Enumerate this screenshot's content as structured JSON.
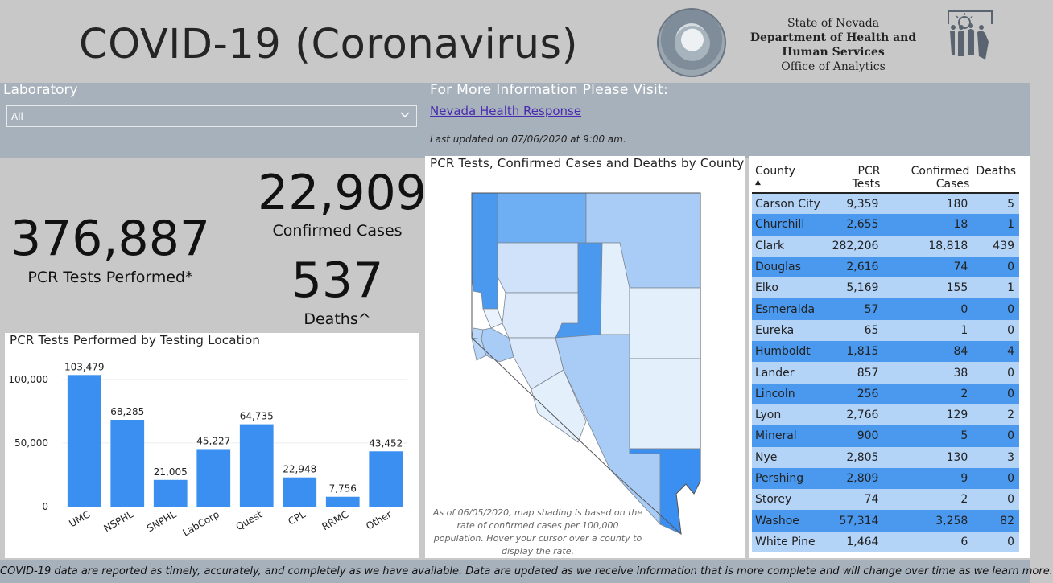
{
  "header": {
    "title": "COVID-19 (Coronavirus)",
    "dept_line1": "State of Nevada",
    "dept_line2": "Department of Health and",
    "dept_line3": "Human Services",
    "dept_line4": "Office of Analytics",
    "seal_icon": "nevada-state-seal",
    "logo_icon": "dhhs-logo"
  },
  "filter": {
    "label": "Laboratory",
    "selected": "All"
  },
  "info": {
    "heading": "For More Information Please Visit:",
    "link_text": "Nevada Health Response",
    "updated": "Last updated on 07/06/2020 at 9:00 am."
  },
  "kpis": {
    "pcr_value": "376,887",
    "pcr_label": "PCR Tests Performed*",
    "cases_value": "22,909",
    "cases_label": "Confirmed Cases",
    "deaths_value": "537",
    "deaths_label": "Deaths^"
  },
  "bar_chart": {
    "title": "PCR Tests Performed by Testing Location"
  },
  "chart_data": {
    "type": "bar",
    "title": "PCR Tests Performed by Testing Location",
    "categories": [
      "UMC",
      "NSPHL",
      "SNPHL",
      "LabCorp",
      "Quest",
      "CPL",
      "RRMC",
      "Other"
    ],
    "values": [
      103479,
      68285,
      21005,
      45227,
      64735,
      22948,
      7756,
      43452
    ],
    "value_labels": [
      "103,479",
      "68,285",
      "21,005",
      "45,227",
      "64,735",
      "22,948",
      "7,756",
      "43,452"
    ],
    "y_ticks": [
      0,
      50000,
      100000
    ],
    "y_tick_labels": [
      "0",
      "50,000",
      "100,000"
    ],
    "ylim": [
      0,
      110000
    ],
    "grid": true,
    "bar_color": "#3b8ff0"
  },
  "map": {
    "title": "PCR Tests, Confirmed Cases and Deaths by County",
    "note": "As of 06/05/2020, map shading is based on the rate of confirmed cases per 100,000 population. Hover your cursor over a county to display the rate."
  },
  "table": {
    "headers": [
      "County",
      "PCR Tests",
      "Confirmed Cases",
      "Deaths"
    ],
    "rows": [
      [
        "Carson City",
        "9,359",
        "180",
        "5"
      ],
      [
        "Churchill",
        "2,655",
        "18",
        "1"
      ],
      [
        "Clark",
        "282,206",
        "18,818",
        "439"
      ],
      [
        "Douglas",
        "2,616",
        "74",
        "0"
      ],
      [
        "Elko",
        "5,169",
        "155",
        "1"
      ],
      [
        "Esmeralda",
        "57",
        "0",
        "0"
      ],
      [
        "Eureka",
        "65",
        "1",
        "0"
      ],
      [
        "Humboldt",
        "1,815",
        "84",
        "4"
      ],
      [
        "Lander",
        "857",
        "38",
        "0"
      ],
      [
        "Lincoln",
        "256",
        "2",
        "0"
      ],
      [
        "Lyon",
        "2,766",
        "129",
        "2"
      ],
      [
        "Mineral",
        "900",
        "5",
        "0"
      ],
      [
        "Nye",
        "2,805",
        "130",
        "3"
      ],
      [
        "Pershing",
        "2,809",
        "9",
        "0"
      ],
      [
        "Storey",
        "74",
        "2",
        "0"
      ],
      [
        "Washoe",
        "57,314",
        "3,258",
        "82"
      ],
      [
        "White Pine",
        "1,464",
        "6",
        "0"
      ]
    ]
  },
  "footer": {
    "text": "COVID-19 data are reported as timely, accurately, and completely as we have available.  Data are updated as we receive information that is more complete and will change over time as we learn more."
  }
}
